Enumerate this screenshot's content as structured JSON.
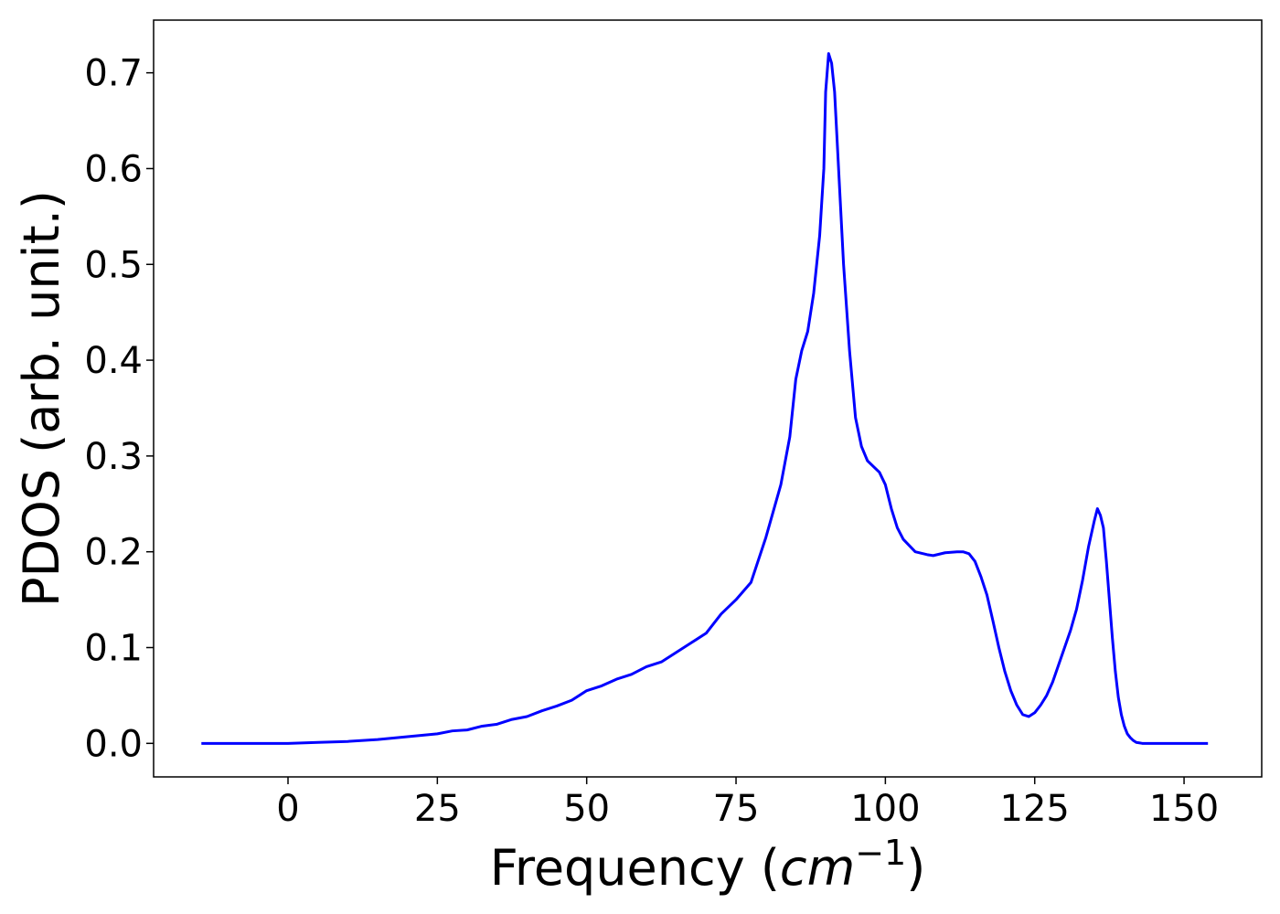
{
  "chart_data": {
    "type": "line",
    "title": "",
    "xlabel": "Frequency (",
    "xlabel_math_base": "cm",
    "xlabel_math_exp": "−1",
    "xlabel_suffix": ")",
    "ylabel": "PDOS (arb. unit.)",
    "xlim": [
      -22.5,
      163
    ],
    "ylim": [
      -0.035,
      0.755
    ],
    "xticks": [
      0,
      25,
      50,
      75,
      100,
      125,
      150
    ],
    "yticks": [
      0.0,
      0.1,
      0.2,
      0.3,
      0.4,
      0.5,
      0.6,
      0.7
    ],
    "ytick_labels": [
      "0.0",
      "0.1",
      "0.2",
      "0.3",
      "0.4",
      "0.5",
      "0.6",
      "0.7"
    ],
    "grid": false,
    "series": [
      {
        "color": "#0000ff",
        "x": [
          -14.5,
          -5,
          0,
          5,
          10,
          15,
          20,
          25,
          27.5,
          30,
          32.5,
          35,
          37.5,
          40,
          42.5,
          45,
          47.5,
          50,
          52.5,
          55,
          57.5,
          60,
          62.5,
          65,
          67.5,
          70,
          72.5,
          75,
          77.5,
          80,
          82.5,
          84,
          85,
          86,
          87,
          88,
          89,
          89.7,
          90,
          90.5,
          91,
          91.5,
          92,
          93,
          94,
          95,
          96,
          97,
          98,
          99,
          100,
          101,
          102,
          103,
          105,
          107,
          108,
          110,
          112,
          113,
          114,
          115,
          116,
          117,
          118,
          119,
          120,
          121,
          122,
          123,
          124,
          125,
          126,
          127,
          128,
          129,
          130,
          131,
          132,
          133,
          134,
          135,
          135.5,
          136,
          136.5,
          137,
          137.5,
          138,
          138.5,
          139,
          139.5,
          140,
          140.5,
          141,
          141.5,
          142,
          142.5,
          143,
          144,
          145,
          147,
          150,
          154
        ],
        "y": [
          0.0,
          0.0,
          0.0,
          0.001,
          0.002,
          0.004,
          0.007,
          0.01,
          0.013,
          0.014,
          0.018,
          0.02,
          0.025,
          0.028,
          0.034,
          0.039,
          0.045,
          0.055,
          0.06,
          0.067,
          0.072,
          0.08,
          0.085,
          0.095,
          0.105,
          0.115,
          0.135,
          0.15,
          0.168,
          0.215,
          0.27,
          0.32,
          0.38,
          0.41,
          0.43,
          0.47,
          0.53,
          0.6,
          0.68,
          0.72,
          0.71,
          0.68,
          0.62,
          0.5,
          0.41,
          0.34,
          0.31,
          0.295,
          0.289,
          0.283,
          0.27,
          0.245,
          0.225,
          0.213,
          0.2,
          0.197,
          0.196,
          0.199,
          0.2,
          0.2,
          0.198,
          0.19,
          0.174,
          0.155,
          0.128,
          0.1,
          0.075,
          0.055,
          0.04,
          0.03,
          0.028,
          0.032,
          0.04,
          0.05,
          0.064,
          0.082,
          0.1,
          0.118,
          0.14,
          0.17,
          0.205,
          0.233,
          0.245,
          0.238,
          0.225,
          0.19,
          0.15,
          0.11,
          0.075,
          0.048,
          0.03,
          0.018,
          0.01,
          0.006,
          0.003,
          0.001,
          0.0005,
          0.0,
          0.0,
          0.0,
          0.0,
          0.0,
          0.0
        ]
      }
    ]
  }
}
